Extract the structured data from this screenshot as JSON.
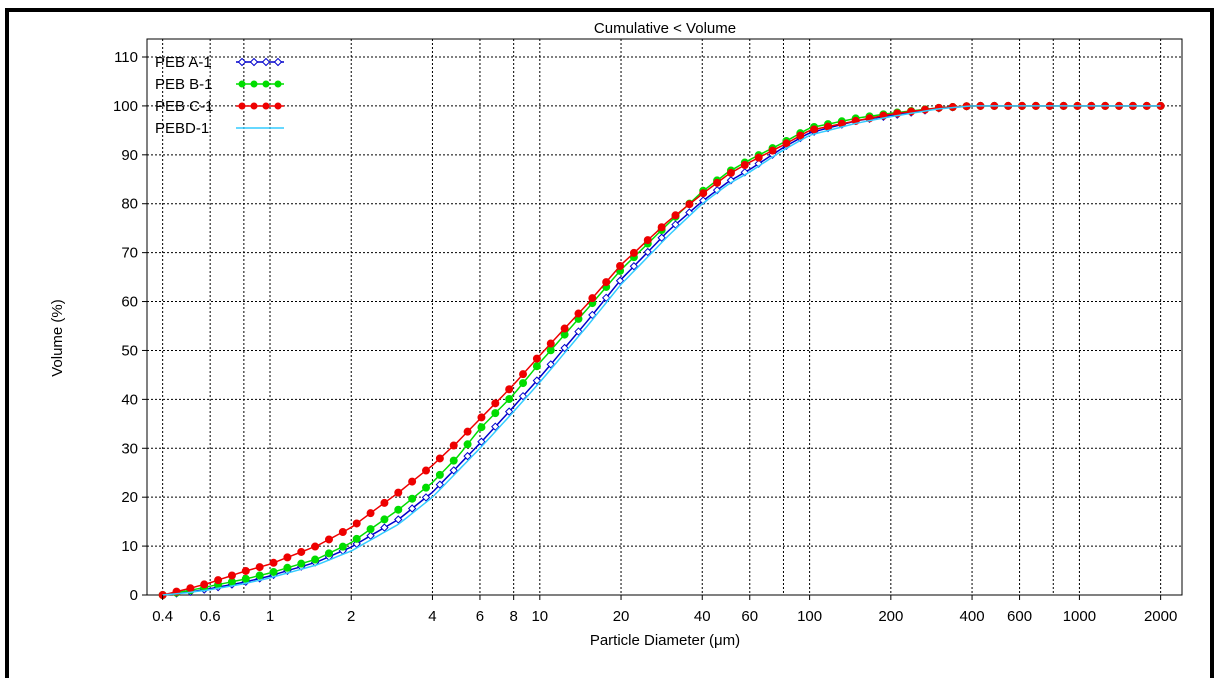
{
  "chart_data": {
    "type": "line",
    "title": "Cumulative < Volume",
    "xlabel": "Particle Diameter (μm)",
    "ylabel": "Volume (%)",
    "x_scale": "log",
    "xlim": [
      0.35,
      2400
    ],
    "ylim": [
      0,
      110
    ],
    "grid": true,
    "legend_position": "top-left",
    "x_ticks": [
      0.4,
      0.6,
      1,
      2,
      4,
      6,
      8,
      10,
      20,
      40,
      60,
      100,
      200,
      400,
      600,
      1000,
      2000
    ],
    "x_tick_labels": [
      "0.4",
      "0.6",
      "1",
      "2",
      "4",
      "6",
      "8",
      "10",
      "20",
      "40",
      "60",
      "100",
      "200",
      "400",
      "600",
      "1000",
      "2000"
    ],
    "y_ticks": [
      0,
      10,
      20,
      30,
      40,
      50,
      60,
      70,
      80,
      90,
      100,
      110
    ],
    "y_tick_labels": [
      "0",
      "10",
      "20",
      "30",
      "40",
      "50",
      "60",
      "70",
      "80",
      "90",
      "100",
      "110"
    ],
    "x": [
      0.4,
      0.5,
      0.6,
      0.8,
      1,
      1.5,
      2,
      3,
      4,
      5,
      6,
      8,
      10,
      15,
      20,
      30,
      40,
      50,
      60,
      80,
      100,
      150,
      200,
      300,
      400,
      600,
      1000,
      2000
    ],
    "series": [
      {
        "name": "PEB A-1",
        "color": "#0000cc",
        "marker": "open-diamond",
        "values": [
          0,
          0.6,
          1.3,
          2.6,
          3.9,
          6.8,
          9.8,
          15.5,
          21,
          26.5,
          31,
          38.5,
          44.5,
          56,
          64.5,
          74.5,
          80.5,
          84.5,
          87,
          91.5,
          94.5,
          97,
          98,
          99.5,
          100,
          100,
          100,
          100
        ]
      },
      {
        "name": "PEB B-1",
        "color": "#00dd00",
        "marker": "filled-circle",
        "values": [
          0,
          0.9,
          1.8,
          3.2,
          4.5,
          7.4,
          10.7,
          17.5,
          23,
          28.5,
          34,
          41,
          47.5,
          58.5,
          66.5,
          76,
          82.5,
          86.5,
          89,
          92.5,
          95.5,
          97.5,
          98.5,
          99.6,
          100,
          100,
          100,
          100
        ]
      },
      {
        "name": "PEB C-1",
        "color": "#ee0000",
        "marker": "filled-circle",
        "values": [
          0,
          1.3,
          2.5,
          4.8,
          6.3,
          10.1,
          13.8,
          21,
          26.5,
          31.5,
          36,
          43,
          49,
          59.5,
          67.5,
          76.5,
          82,
          86,
          88.5,
          92,
          95,
          97,
          98.3,
          99.6,
          100,
          100,
          100,
          100
        ]
      },
      {
        "name": "PEBD-1",
        "color": "#33ccff",
        "marker": "none",
        "values": [
          0,
          0.5,
          1.1,
          2.3,
          3.5,
          6.2,
          9,
          14.5,
          20,
          25.5,
          30,
          37.5,
          43.5,
          55,
          63.5,
          73.5,
          80,
          84,
          86.5,
          91,
          94,
          96.5,
          97.8,
          99.4,
          100,
          100,
          100,
          100
        ]
      }
    ]
  }
}
